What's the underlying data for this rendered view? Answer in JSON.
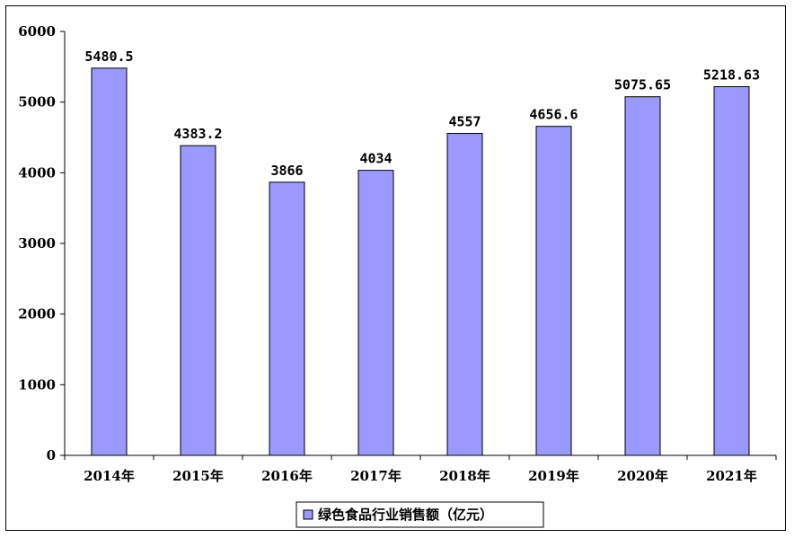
{
  "chart_data": {
    "type": "bar",
    "categories": [
      "2014年",
      "2015年",
      "2016年",
      "2017年",
      "2018年",
      "2019年",
      "2020年",
      "2021年"
    ],
    "series": [
      {
        "name": "绿色食品行业销售额（亿元）",
        "values": [
          5480.5,
          4383.2,
          3866,
          4034,
          4557,
          4656.6,
          5075.65,
          5218.63
        ],
        "data_labels": [
          "5480.5",
          "4383.2",
          "3866",
          "4034",
          "4557",
          "4656.6",
          "5075.65",
          "5218.63"
        ]
      }
    ],
    "ylim": [
      0,
      6000
    ],
    "yticks": [
      0,
      1000,
      2000,
      3000,
      4000,
      5000,
      6000
    ],
    "bar_color": "#9999FF",
    "bar_edge_color": "#000000",
    "legend_position": "bottom",
    "grid": false
  }
}
